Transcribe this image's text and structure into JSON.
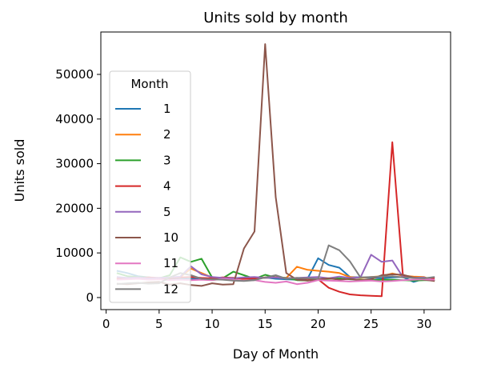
{
  "chart_data": {
    "type": "line",
    "title": "Units sold by month",
    "xlabel": "Day of Month",
    "ylabel": "Units sold",
    "xlim": [
      -0.5,
      32.5
    ],
    "ylim": [
      -2700,
      59500
    ],
    "xticks": [
      0,
      5,
      10,
      15,
      20,
      25,
      30
    ],
    "yticks": [
      0,
      10000,
      20000,
      30000,
      40000,
      50000
    ],
    "grid": false,
    "legend": {
      "title": "Month",
      "placement": "center-left"
    },
    "x": [
      1,
      2,
      3,
      4,
      5,
      6,
      7,
      8,
      9,
      10,
      11,
      12,
      13,
      14,
      15,
      16,
      17,
      18,
      19,
      20,
      21,
      22,
      23,
      24,
      25,
      26,
      27,
      28,
      29,
      30,
      31
    ],
    "series": [
      {
        "name": "1",
        "color": "#1f77b4",
        "values": [
          6000,
          5500,
          4800,
          4500,
          4300,
          4200,
          4300,
          4200,
          4100,
          4300,
          4200,
          4400,
          4300,
          4100,
          4500,
          4200,
          4100,
          4000,
          4200,
          8800,
          7300,
          6700,
          4600,
          4500,
          4400,
          4300,
          4500,
          4600,
          3500,
          4200,
          4600
        ]
      },
      {
        "name": "2",
        "color": "#ff7f0e",
        "values": [
          4200,
          4400,
          4500,
          4300,
          4400,
          4500,
          4600,
          6500,
          5500,
          4500,
          4300,
          4400,
          4200,
          4300,
          4500,
          4600,
          4400,
          6900,
          6200,
          6000,
          5800,
          5500,
          4600,
          4400,
          4600,
          4800,
          5400,
          4900,
          4700,
          4600,
          3700
        ]
      },
      {
        "name": "3",
        "color": "#2ca02c",
        "values": [
          5500,
          4800,
          4600,
          4500,
          4300,
          5000,
          9000,
          8000,
          8700,
          4500,
          4300,
          5800,
          5000,
          4200,
          5100,
          4500,
          4400,
          3900,
          3800,
          4000,
          4200,
          4300,
          4100,
          4000,
          3900,
          4000,
          4000,
          3900,
          3800,
          3900,
          3900
        ]
      },
      {
        "name": "4",
        "color": "#d62728",
        "values": [
          4200,
          4400,
          4300,
          4500,
          4400,
          4300,
          4500,
          4600,
          4400,
          4300,
          4500,
          4400,
          4200,
          4300,
          4400,
          4500,
          4300,
          4400,
          4200,
          4100,
          2200,
          1300,
          700,
          500,
          400,
          300,
          34800,
          5000,
          4500,
          4400,
          4300
        ]
      },
      {
        "name": "5",
        "color": "#9467bd",
        "values": [
          4600,
          4400,
          4500,
          4300,
          4400,
          4500,
          4700,
          7000,
          5200,
          4600,
          4400,
          4300,
          4500,
          4600,
          4400,
          4500,
          4300,
          4400,
          4500,
          4600,
          4300,
          4700,
          4400,
          4500,
          9600,
          8000,
          8300,
          4600,
          4400,
          4500,
          3800
        ]
      },
      {
        "name": "10",
        "color": "#8c564b",
        "values": [
          3100,
          3000,
          3200,
          3400,
          3500,
          2900,
          3200,
          2800,
          2600,
          3200,
          2900,
          3000,
          11000,
          14800,
          56800,
          22500,
          5500,
          4000,
          3800,
          4100,
          4300,
          4000,
          4200,
          3900,
          4100,
          5000,
          5200,
          5100,
          4500,
          4000,
          3700
        ]
      },
      {
        "name": "11",
        "color": "#e377c2",
        "values": [
          4000,
          4100,
          4200,
          4000,
          4100,
          3900,
          4000,
          3900,
          4000,
          3900,
          4200,
          4000,
          3800,
          3900,
          3500,
          3300,
          3600,
          3000,
          3300,
          3900,
          3800,
          3700,
          3600,
          3700,
          3800,
          3600,
          3700,
          3900,
          4000,
          4100,
          4000
        ]
      },
      {
        "name": "12",
        "color": "#7f7f7f",
        "values": [
          3000,
          3200,
          3300,
          3100,
          3200,
          4500,
          5500,
          5000,
          4200,
          4100,
          4000,
          3800,
          3700,
          3900,
          4500,
          5000,
          4200,
          4400,
          4300,
          4200,
          11700,
          10600,
          8100,
          4500,
          4600,
          4700,
          4800,
          4500,
          4400,
          4300,
          4600
        ]
      }
    ]
  }
}
